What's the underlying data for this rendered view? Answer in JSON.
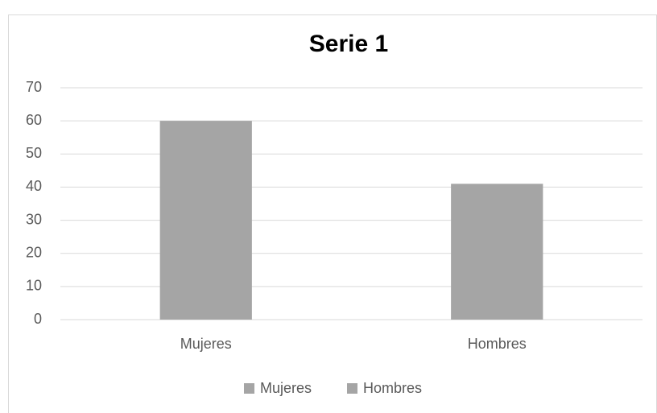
{
  "chart_data": {
    "type": "bar",
    "title": "Serie 1",
    "categories": [
      "Mujeres",
      "Hombres"
    ],
    "values": [
      60,
      41
    ],
    "colors": [
      "#a5a5a5",
      "#a5a5a5"
    ],
    "ylim": [
      0,
      70
    ],
    "yticks": [
      0,
      10,
      20,
      30,
      40,
      50,
      60,
      70
    ],
    "grid": true,
    "legend": "bottom"
  }
}
